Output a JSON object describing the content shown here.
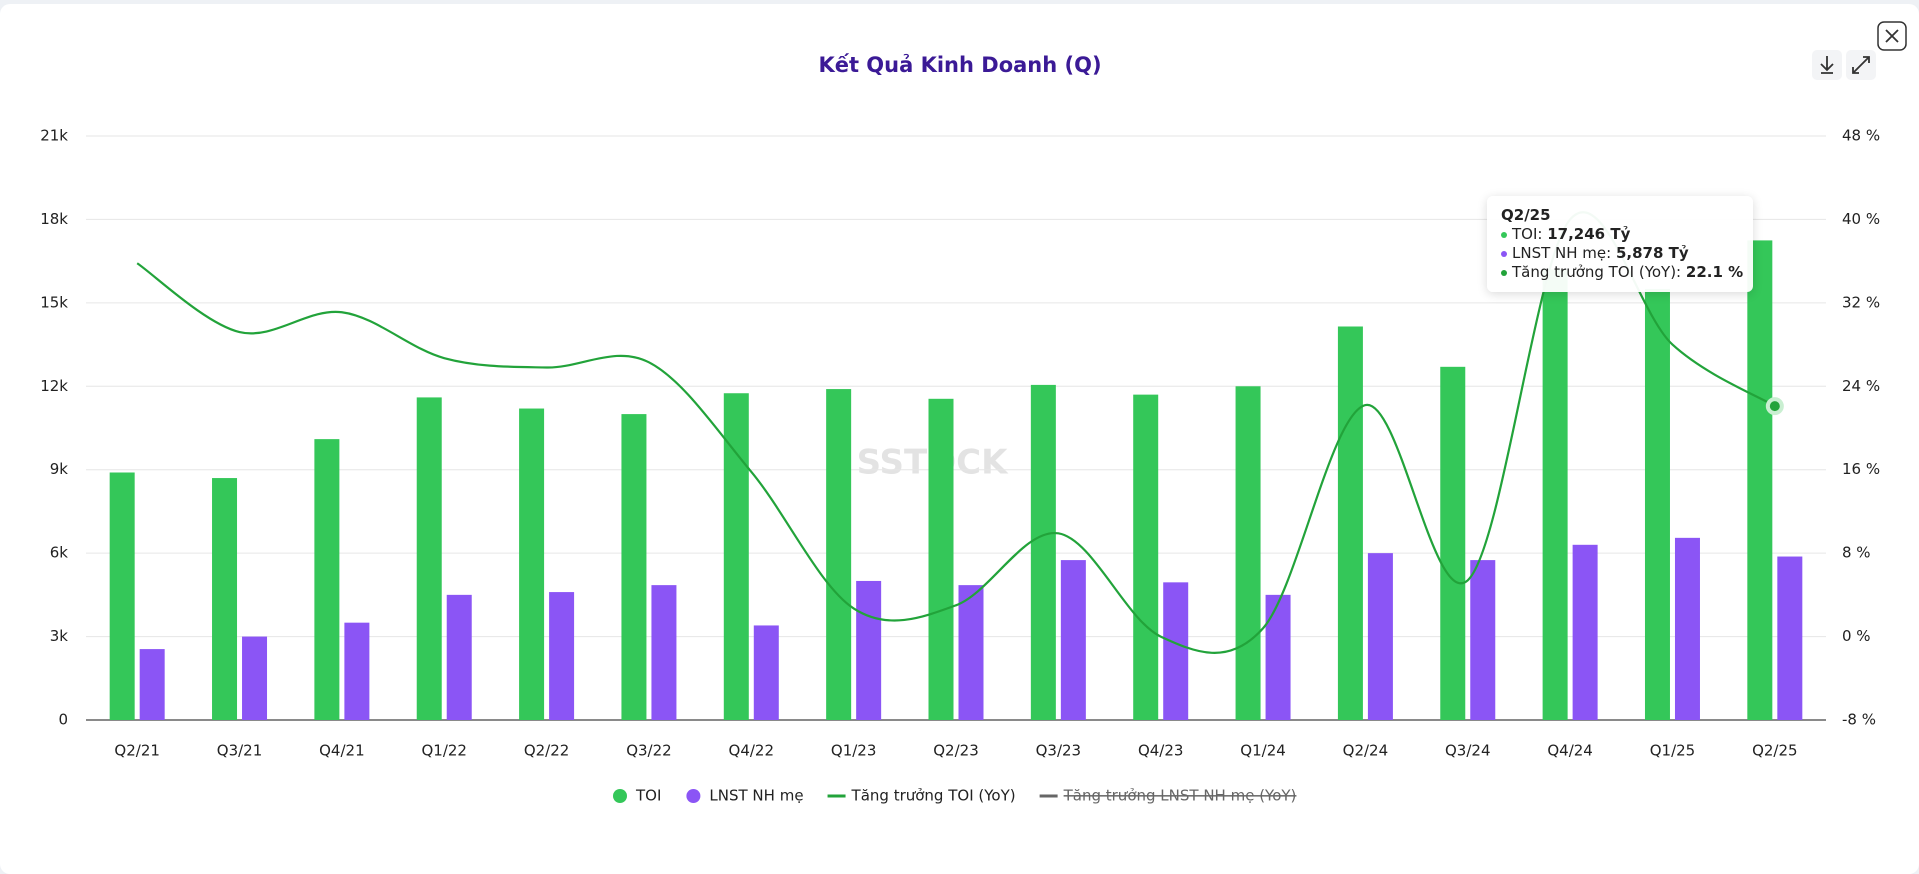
{
  "chart_data": {
    "type": "bar_line",
    "title": "Kết Quả Kinh Doanh (Q)",
    "watermark": "SSTOCK",
    "categories": [
      "Q2/21",
      "Q3/21",
      "Q4/21",
      "Q1/22",
      "Q2/22",
      "Q3/22",
      "Q4/22",
      "Q1/23",
      "Q2/23",
      "Q3/23",
      "Q4/23",
      "Q1/24",
      "Q2/24",
      "Q3/24",
      "Q4/24",
      "Q1/25",
      "Q2/25"
    ],
    "series": [
      {
        "name": "TOI",
        "type": "bar",
        "color": "#34c759",
        "values": [
          8900,
          8700,
          10100,
          11600,
          11200,
          11000,
          11750,
          11900,
          11550,
          12050,
          11700,
          12000,
          14150,
          12700,
          16200,
          15500,
          17246
        ]
      },
      {
        "name": "LNST NH mẹ",
        "type": "bar",
        "color": "#8b55f5",
        "values": [
          2550,
          3000,
          3500,
          4500,
          4600,
          4850,
          3400,
          5000,
          4850,
          5750,
          4950,
          4500,
          6000,
          5750,
          6300,
          6550,
          5878
        ]
      },
      {
        "name": "Tăng trưởng TOI (YoY)",
        "type": "line",
        "axis": "y2",
        "color": "#22a33a",
        "values": [
          35.8,
          29.2,
          31.1,
          26.7,
          25.8,
          26.3,
          15.8,
          2.7,
          3.0,
          9.9,
          0.0,
          0.8,
          22.2,
          5.4,
          40.0,
          28.0,
          22.1
        ]
      }
    ],
    "hidden_legend": [
      "Tăng trưởng LNST NH mẹ (YoY)"
    ],
    "ylim": [
      0,
      21000
    ],
    "yticks": [
      0,
      {
        "value": 3000,
        "label": "3k"
      },
      {
        "value": 6000,
        "label": "6k"
      },
      {
        "value": 9000,
        "label": "9k"
      },
      {
        "value": 12000,
        "label": "12k"
      },
      {
        "value": 15000,
        "label": "15k"
      },
      {
        "value": 18000,
        "label": "18k"
      },
      {
        "value": 21000,
        "label": "21k"
      }
    ],
    "y2lim": [
      -8,
      48
    ],
    "y2ticks": [
      {
        "value": -8,
        "label": "-8 %"
      },
      {
        "value": 0,
        "label": "0 %"
      },
      {
        "value": 8,
        "label": "8 %"
      },
      {
        "value": 16,
        "label": "16 %"
      },
      {
        "value": 24,
        "label": "24 %"
      },
      {
        "value": 32,
        "label": "32 %"
      },
      {
        "value": 40,
        "label": "40 %"
      },
      {
        "value": 48,
        "label": "48 %"
      }
    ],
    "grid": true,
    "tooltip": {
      "category": "Q2/25",
      "items": [
        {
          "label": "TOI:",
          "value": "17,246 Tỷ",
          "color": "#34c759"
        },
        {
          "label": "LNST NH mẹ:",
          "value": "5,878 Tỷ",
          "color": "#8b55f5"
        },
        {
          "label": "Tăng trưởng TOI (YoY):",
          "value": "22.1 %",
          "color": "#22a33a"
        }
      ]
    }
  }
}
